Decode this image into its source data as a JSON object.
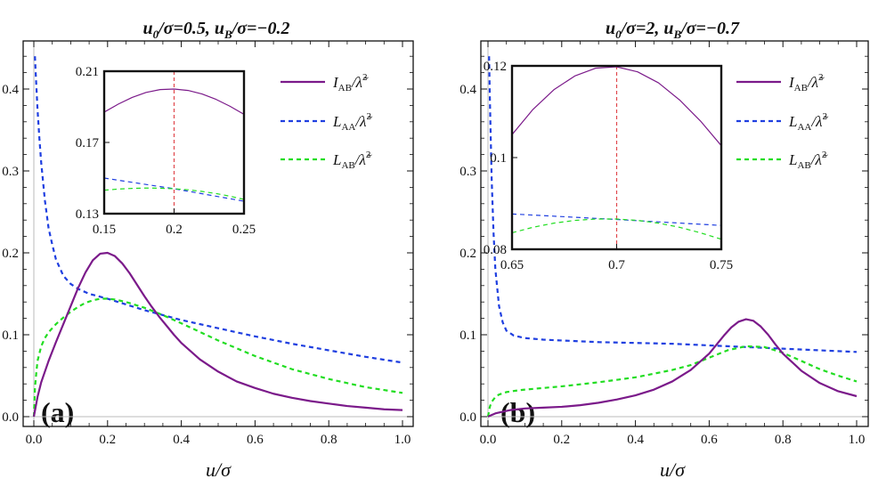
{
  "chart_data": [
    {
      "type": "line",
      "panel_label": "(a)",
      "title": "u0/σ=0.5,  uB/σ=−0.2",
      "title_parts": {
        "a": "u",
        "a_sub": "0",
        "b": "/σ=0.5,  ",
        "c": "u",
        "c_sub": "B",
        "d": "/σ=−0.2"
      },
      "xlabel": "u/σ",
      "xlim": [
        0.0,
        1.0
      ],
      "ylim": [
        0.0,
        0.46
      ],
      "xticks": [
        0.0,
        0.2,
        0.4,
        0.6,
        0.8,
        1.0
      ],
      "xtick_labels": [
        "0.0",
        "0.2",
        "0.4",
        "0.6",
        "0.8",
        "1.0"
      ],
      "yticks": [
        0.0,
        0.1,
        0.2,
        0.3,
        0.4
      ],
      "ytick_labels": [
        "0.0",
        "0.1",
        "0.2",
        "0.3",
        "0.4"
      ],
      "series": [
        {
          "name": "I_AB",
          "color": "#7b1a8a",
          "style": "solid",
          "x": [
            0.0,
            0.005,
            0.01,
            0.02,
            0.04,
            0.06,
            0.08,
            0.1,
            0.12,
            0.14,
            0.16,
            0.18,
            0.2,
            0.22,
            0.24,
            0.26,
            0.28,
            0.3,
            0.32,
            0.34,
            0.36,
            0.38,
            0.4,
            0.45,
            0.5,
            0.55,
            0.6,
            0.65,
            0.7,
            0.75,
            0.8,
            0.85,
            0.9,
            0.95,
            1.0
          ],
          "y": [
            0.0,
            0.012,
            0.024,
            0.042,
            0.068,
            0.091,
            0.113,
            0.135,
            0.157,
            0.176,
            0.191,
            0.199,
            0.2,
            0.196,
            0.187,
            0.175,
            0.161,
            0.147,
            0.134,
            0.122,
            0.111,
            0.1,
            0.09,
            0.07,
            0.055,
            0.043,
            0.035,
            0.028,
            0.023,
            0.019,
            0.016,
            0.013,
            0.011,
            0.009,
            0.008
          ]
        },
        {
          "name": "L_AA",
          "color": "#1f3fe0",
          "style": "dashed",
          "x": [
            0.003,
            0.005,
            0.01,
            0.015,
            0.02,
            0.03,
            0.04,
            0.05,
            0.06,
            0.08,
            0.1,
            0.12,
            0.15,
            0.2,
            0.25,
            0.3,
            0.35,
            0.4,
            0.5,
            0.6,
            0.7,
            0.8,
            0.9,
            1.0
          ],
          "y": [
            0.44,
            0.42,
            0.375,
            0.34,
            0.31,
            0.264,
            0.23,
            0.21,
            0.192,
            0.172,
            0.162,
            0.156,
            0.15,
            0.144,
            0.137,
            0.13,
            0.124,
            0.118,
            0.108,
            0.098,
            0.089,
            0.081,
            0.073,
            0.066
          ]
        },
        {
          "name": "L_AB",
          "color": "#22dd22",
          "style": "dashed",
          "x": [
            0.0,
            0.003,
            0.007,
            0.01,
            0.02,
            0.03,
            0.04,
            0.06,
            0.08,
            0.1,
            0.12,
            0.14,
            0.16,
            0.18,
            0.2,
            0.22,
            0.25,
            0.3,
            0.35,
            0.4,
            0.5,
            0.6,
            0.7,
            0.8,
            0.9,
            1.0
          ],
          "y": [
            0.0,
            0.035,
            0.055,
            0.068,
            0.086,
            0.096,
            0.103,
            0.113,
            0.121,
            0.128,
            0.134,
            0.139,
            0.142,
            0.144,
            0.144,
            0.143,
            0.14,
            0.133,
            0.124,
            0.114,
            0.093,
            0.074,
            0.058,
            0.046,
            0.036,
            0.029
          ]
        }
      ],
      "inset": {
        "xlim": [
          0.15,
          0.25
        ],
        "ylim": [
          0.13,
          0.21
        ],
        "xticks": [
          0.15,
          0.2,
          0.25
        ],
        "xtick_labels": [
          "0.15",
          "0.2",
          "0.25"
        ],
        "yticks": [
          0.13,
          0.17,
          0.21
        ],
        "ytick_labels": [
          "0.13",
          "0.17",
          "0.21"
        ],
        "vline_x": 0.2,
        "series": [
          {
            "name": "I_AB",
            "x": [
              0.15,
              0.16,
              0.17,
              0.18,
              0.19,
              0.2,
              0.21,
              0.22,
              0.23,
              0.24,
              0.25
            ],
            "y": [
              0.187,
              0.1915,
              0.1953,
              0.1981,
              0.1997,
              0.2,
              0.1992,
              0.1972,
              0.1942,
              0.1903,
              0.1858
            ]
          },
          {
            "name": "L_AA",
            "x": [
              0.15,
              0.175,
              0.2,
              0.225,
              0.25
            ],
            "y": [
              0.15,
              0.147,
              0.144,
              0.1405,
              0.137
            ]
          },
          {
            "name": "L_AB",
            "x": [
              0.15,
              0.16,
              0.17,
              0.18,
              0.19,
              0.2,
              0.21,
              0.22,
              0.23,
              0.24,
              0.25
            ],
            "y": [
              0.1432,
              0.1438,
              0.1442,
              0.1444,
              0.1443,
              0.144,
              0.1434,
              0.1425,
              0.1413,
              0.1398,
              0.138
            ]
          }
        ]
      }
    },
    {
      "type": "line",
      "panel_label": "(b)",
      "title": "u0/σ=2,  uB/σ=−0.7",
      "title_parts": {
        "a": "u",
        "a_sub": "0",
        "b": "/σ=2,  ",
        "c": "u",
        "c_sub": "B",
        "d": "/σ=−0.7"
      },
      "xlabel": "u/σ",
      "xlim": [
        0.0,
        1.0
      ],
      "ylim": [
        0.0,
        0.46
      ],
      "xticks": [
        0.0,
        0.2,
        0.4,
        0.6,
        0.8,
        1.0
      ],
      "xtick_labels": [
        "0.0",
        "0.2",
        "0.4",
        "0.6",
        "0.8",
        "1.0"
      ],
      "yticks": [
        0.0,
        0.1,
        0.2,
        0.3,
        0.4
      ],
      "ytick_labels": [
        "0.0",
        "0.1",
        "0.2",
        "0.3",
        "0.4"
      ],
      "series": [
        {
          "name": "I_AB",
          "color": "#7b1a8a",
          "style": "solid",
          "x": [
            0.0,
            0.01,
            0.02,
            0.04,
            0.06,
            0.1,
            0.15,
            0.2,
            0.25,
            0.3,
            0.35,
            0.4,
            0.45,
            0.5,
            0.55,
            0.6,
            0.62,
            0.64,
            0.66,
            0.68,
            0.7,
            0.72,
            0.74,
            0.76,
            0.78,
            0.8,
            0.85,
            0.9,
            0.95,
            1.0
          ],
          "y": [
            0.0,
            0.002,
            0.004,
            0.006,
            0.008,
            0.01,
            0.011,
            0.012,
            0.014,
            0.017,
            0.021,
            0.026,
            0.033,
            0.043,
            0.057,
            0.077,
            0.088,
            0.099,
            0.109,
            0.116,
            0.119,
            0.117,
            0.11,
            0.1,
            0.088,
            0.077,
            0.056,
            0.041,
            0.031,
            0.025
          ]
        },
        {
          "name": "L_AA",
          "color": "#1f3fe0",
          "style": "dashed",
          "x": [
            0.003,
            0.005,
            0.008,
            0.01,
            0.015,
            0.02,
            0.03,
            0.04,
            0.05,
            0.07,
            0.1,
            0.15,
            0.2,
            0.3,
            0.4,
            0.5,
            0.6,
            0.7,
            0.8,
            0.9,
            1.0
          ],
          "y": [
            0.44,
            0.39,
            0.33,
            0.29,
            0.225,
            0.18,
            0.135,
            0.115,
            0.105,
            0.099,
            0.096,
            0.094,
            0.093,
            0.091,
            0.09,
            0.089,
            0.087,
            0.085,
            0.083,
            0.081,
            0.079
          ]
        },
        {
          "name": "L_AB",
          "color": "#22dd22",
          "style": "dashed",
          "x": [
            0.0,
            0.005,
            0.01,
            0.02,
            0.03,
            0.05,
            0.08,
            0.1,
            0.15,
            0.2,
            0.3,
            0.4,
            0.5,
            0.55,
            0.6,
            0.65,
            0.7,
            0.75,
            0.8,
            0.85,
            0.9,
            0.95,
            1.0
          ],
          "y": [
            0.0,
            0.012,
            0.018,
            0.024,
            0.027,
            0.03,
            0.032,
            0.033,
            0.035,
            0.037,
            0.042,
            0.048,
            0.057,
            0.063,
            0.072,
            0.081,
            0.086,
            0.085,
            0.078,
            0.068,
            0.058,
            0.05,
            0.043
          ]
        }
      ],
      "inset": {
        "xlim": [
          0.65,
          0.75
        ],
        "ylim": [
          0.08,
          0.12
        ],
        "xticks": [
          0.65,
          0.7,
          0.75
        ],
        "xtick_labels": [
          "0.65",
          "0.7",
          "0.75"
        ],
        "yticks": [
          0.08,
          0.1,
          0.12
        ],
        "ytick_labels": [
          "0.08",
          "0.1",
          "0.12"
        ],
        "vline_x": 0.7,
        "series": [
          {
            "name": "I_AB",
            "x": [
              0.65,
              0.66,
              0.67,
              0.68,
              0.69,
              0.7,
              0.71,
              0.72,
              0.73,
              0.74,
              0.75
            ],
            "y": [
              0.105,
              0.1105,
              0.1148,
              0.1178,
              0.1195,
              0.1198,
              0.1187,
              0.1163,
              0.1126,
              0.108,
              0.1026
            ]
          },
          {
            "name": "L_AA",
            "x": [
              0.65,
              0.7,
              0.75
            ],
            "y": [
              0.0877,
              0.0865,
              0.0852
            ]
          },
          {
            "name": "L_AB",
            "x": [
              0.65,
              0.66,
              0.67,
              0.68,
              0.69,
              0.7,
              0.71,
              0.72,
              0.73,
              0.74,
              0.75
            ],
            "y": [
              0.0836,
              0.0848,
              0.0857,
              0.0863,
              0.0866,
              0.0866,
              0.0863,
              0.0857,
              0.0848,
              0.0836,
              0.0822
            ]
          }
        ]
      }
    }
  ],
  "legend": [
    {
      "main": "I",
      "sub": "AB",
      "color": "#7b1a8a",
      "style": "solid"
    },
    {
      "main": "L",
      "sub": "AA",
      "color": "#1f3fe0",
      "style": "dashed"
    },
    {
      "main": "L",
      "sub": "AB",
      "color": "#22dd22",
      "style": "dashed"
    }
  ],
  "legend_denominator": "/λ̃",
  "legend_power": "2",
  "colors": {
    "axis": "#111111",
    "vline": "#e0474c"
  }
}
